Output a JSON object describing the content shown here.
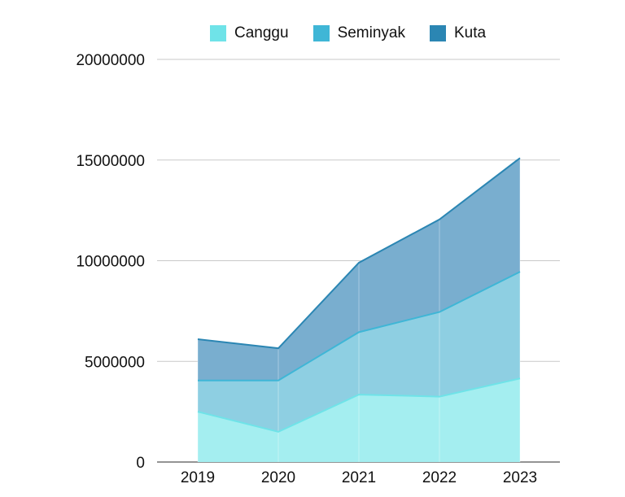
{
  "chart_data": {
    "type": "area",
    "stacked": true,
    "title": "",
    "xlabel": "",
    "ylabel": "",
    "categories": [
      "2019",
      "2020",
      "2021",
      "2022",
      "2023"
    ],
    "ylim": [
      0,
      20000000
    ],
    "yticks": [
      "0",
      "5000000",
      "10000000",
      "15000000",
      "20000000"
    ],
    "series": [
      {
        "name": "Canggu",
        "values": [
          2500000,
          1500000,
          3350000,
          3250000,
          4150000
        ],
        "fill": "#a4eef0",
        "line": "#6fe3e8",
        "legend_color": "#6fe3e8"
      },
      {
        "name": "Seminyak",
        "values": [
          1550000,
          2550000,
          3100000,
          4200000,
          5300000
        ],
        "fill": "#8ecfe2",
        "line": "#3fb6d6",
        "legend_color": "#3fb6d6"
      },
      {
        "name": "Kuta",
        "values": [
          2050000,
          1600000,
          3450000,
          4600000,
          5650000
        ],
        "fill": "#79aecf",
        "line": "#2b86b3",
        "legend_color": "#2b86b3"
      }
    ],
    "legend_position": "top-center",
    "grid": true
  }
}
